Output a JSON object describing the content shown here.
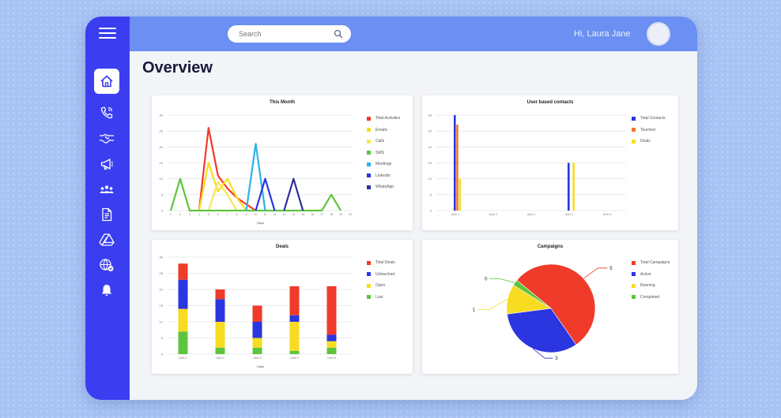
{
  "header": {
    "search_placeholder": "Search",
    "greeting": "Hi, Laura Jane"
  },
  "page_title": "Overview",
  "sidebar": {
    "items": [
      {
        "name": "home",
        "icon": "home-icon",
        "active": true
      },
      {
        "name": "calls",
        "icon": "phone-icon"
      },
      {
        "name": "deals",
        "icon": "handshake-icon"
      },
      {
        "name": "campaigns",
        "icon": "megaphone-icon"
      },
      {
        "name": "contacts",
        "icon": "people-icon"
      },
      {
        "name": "reports",
        "icon": "document-icon"
      },
      {
        "name": "drive",
        "icon": "drive-icon"
      },
      {
        "name": "web",
        "icon": "globe-icon"
      },
      {
        "name": "notifications",
        "icon": "bell-icon"
      }
    ]
  },
  "colors": {
    "red": "#f03a2a",
    "blue": "#2b35e0",
    "yellow": "#f7dc21",
    "green": "#5fc43b",
    "orange": "#f07a2a",
    "sky": "#2ab3ea",
    "navy": "#2d2f9a",
    "gray": "#9aa0a8",
    "accent": "#3a3ef0"
  },
  "chart_data": [
    {
      "type": "line",
      "title": "This Month",
      "xlabel": "Days",
      "ylabel": "",
      "x": [
        1,
        2,
        3,
        4,
        5,
        6,
        7,
        8,
        9,
        10,
        11,
        12,
        13,
        14,
        15,
        16,
        17,
        18,
        19,
        20
      ],
      "ylim": [
        0,
        30
      ],
      "series": [
        {
          "name": "Total Activities",
          "color": "#f03a2a",
          "points": [
            [
              4,
              0
            ],
            [
              5,
              26
            ],
            [
              6,
              11
            ],
            [
              7,
              7
            ],
            [
              8,
              4
            ],
            [
              9,
              2
            ],
            [
              10,
              0
            ]
          ]
        },
        {
          "name": "Emails",
          "color": "#f7dc21",
          "points": [
            [
              4,
              0
            ],
            [
              5,
              15
            ],
            [
              6,
              6
            ],
            [
              7,
              10
            ],
            [
              8,
              4
            ],
            [
              9,
              0
            ]
          ]
        },
        {
          "name": "Calls",
          "color": "#f5e85a",
          "points": [
            [
              5,
              0
            ],
            [
              6,
              9
            ],
            [
              7,
              5
            ],
            [
              8,
              0
            ]
          ]
        },
        {
          "name": "SMS",
          "color": "#5fc43b",
          "points": [
            [
              1,
              0
            ],
            [
              2,
              10
            ],
            [
              3,
              0
            ],
            [
              17,
              0
            ],
            [
              18,
              5
            ],
            [
              19,
              0
            ]
          ]
        },
        {
          "name": "Meetings",
          "color": "#2ab3ea",
          "points": [
            [
              9,
              0
            ],
            [
              10,
              21
            ],
            [
              11,
              0
            ]
          ]
        },
        {
          "name": "LinkedIn",
          "color": "#2b35e0",
          "points": [
            [
              10,
              0
            ],
            [
              11,
              10
            ],
            [
              12,
              0
            ]
          ]
        },
        {
          "name": "WhatsApp",
          "color": "#2d2f9a",
          "points": [
            [
              13,
              0
            ],
            [
              14,
              10
            ],
            [
              15,
              0
            ]
          ]
        }
      ]
    },
    {
      "type": "bar",
      "title": "User based contacts",
      "categories": [
        "User 1",
        "User 2",
        "User 3",
        "User 4",
        "User 5"
      ],
      "ylim": [
        0,
        30
      ],
      "series": [
        {
          "name": "Total Contacts",
          "color": "#2b35e0",
          "values": [
            30,
            0,
            0,
            15,
            0
          ]
        },
        {
          "name": "Touched",
          "color": "#f07a2a",
          "values": [
            27,
            0,
            0,
            0,
            0
          ]
        },
        {
          "name": "Deals",
          "color": "#f7dc21",
          "values": [
            10,
            0,
            0,
            15,
            0
          ]
        }
      ]
    },
    {
      "type": "bar",
      "stacked": true,
      "title": "Deals",
      "xlabel": "Days",
      "categories": [
        "User 1",
        "User 2",
        "User 3",
        "User 4",
        "User 5"
      ],
      "ylim": [
        0,
        30
      ],
      "series": [
        {
          "name": "Total Deals",
          "color": "#f03a2a",
          "values": [
            5,
            3,
            5,
            9,
            15
          ]
        },
        {
          "name": "Untouched",
          "color": "#2b35e0",
          "values": [
            9,
            7,
            5,
            2,
            2
          ]
        },
        {
          "name": "Open",
          "color": "#f7dc21",
          "values": [
            7,
            8,
            3,
            9,
            2
          ]
        },
        {
          "name": "Lost",
          "color": "#5fc43b",
          "values": [
            7,
            2,
            2,
            1,
            2
          ]
        }
      ]
    },
    {
      "type": "pie",
      "title": "Campaigns",
      "labels": [
        "Total Campaigns",
        "Active",
        "Running",
        "Completed"
      ],
      "values": [
        5,
        3,
        1,
        0.2
      ],
      "data_labels": [
        "5",
        "3",
        "1",
        "0"
      ],
      "colors": [
        "#f03a2a",
        "#2b35e0",
        "#f7dc21",
        "#5fc43b"
      ]
    }
  ]
}
